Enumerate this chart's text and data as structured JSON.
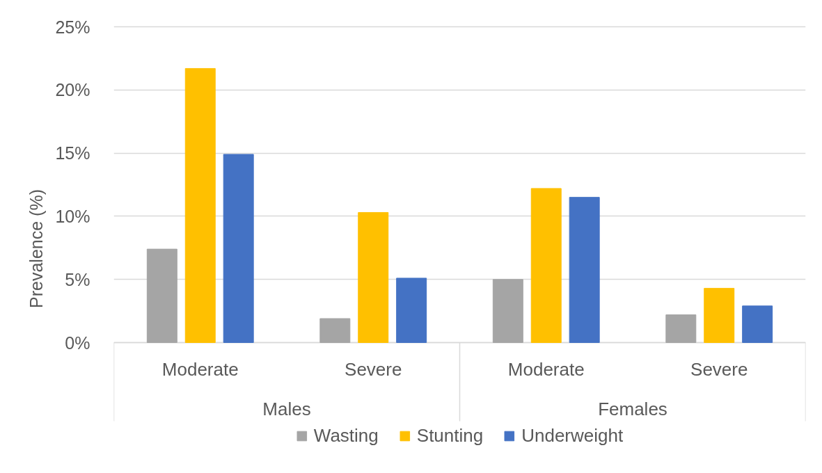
{
  "chart_data": {
    "type": "bar",
    "ylabel": "Prevalence (%)",
    "categories": [
      "Moderate",
      "Severe",
      "Moderate",
      "Severe"
    ],
    "annotations": [
      "Males",
      "Females"
    ],
    "series": [
      {
        "name": "Wasting",
        "color": "#a5a5a5",
        "values": [
          7.4,
          1.9,
          5.0,
          2.2
        ]
      },
      {
        "name": "Stunting",
        "color": "#ffc000",
        "values": [
          21.7,
          10.3,
          12.2,
          4.3
        ]
      },
      {
        "name": "Underweight",
        "color": "#4472c4",
        "values": [
          14.9,
          5.1,
          11.5,
          2.9
        ]
      }
    ],
    "ylim": [
      0,
      25
    ],
    "yticks": [
      {
        "value": 0,
        "label": "0%"
      },
      {
        "value": 5,
        "label": "5%"
      },
      {
        "value": 10,
        "label": "10%"
      },
      {
        "value": 15,
        "label": "15%"
      },
      {
        "value": 20,
        "label": "20%"
      },
      {
        "value": 25,
        "label": "25%"
      }
    ],
    "grid": "y",
    "legend": "bottom"
  }
}
